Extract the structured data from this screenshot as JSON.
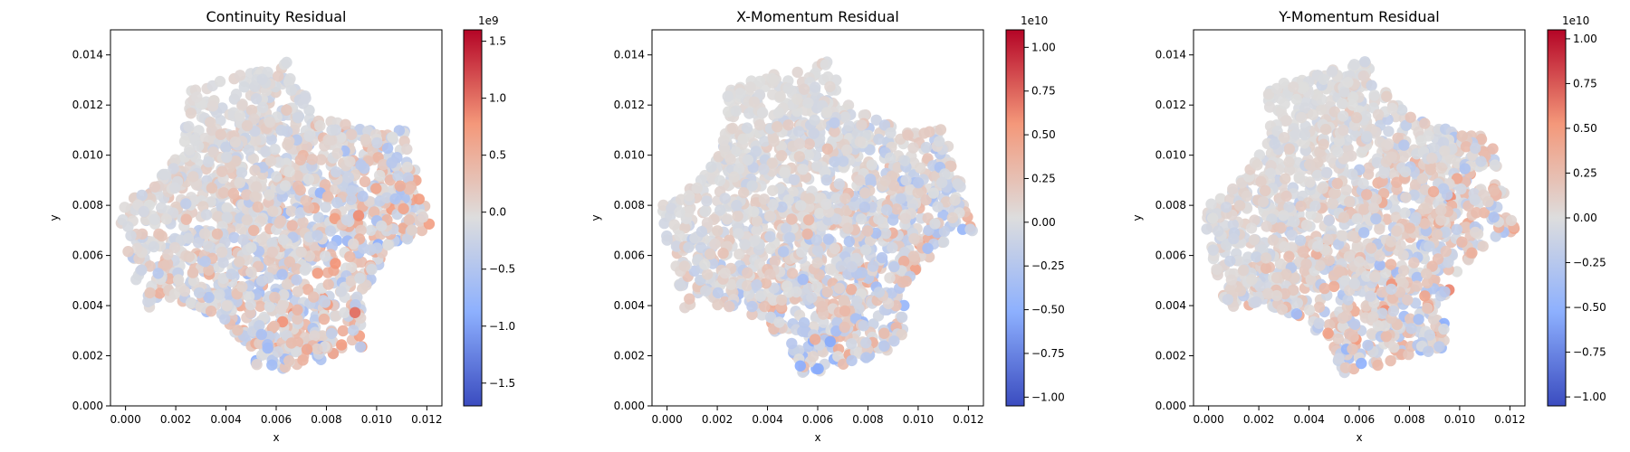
{
  "chart_data": [
    {
      "type": "scatter",
      "title": "Continuity Residual",
      "xlabel": "x",
      "ylabel": "y",
      "xlim": [
        -0.0006,
        0.0126
      ],
      "ylim": [
        0.0,
        0.015
      ],
      "xticks": [
        0.0,
        0.002,
        0.004,
        0.006,
        0.008,
        0.01,
        0.012
      ],
      "xtick_labels": [
        "0.000",
        "0.002",
        "0.004",
        "0.006",
        "0.008",
        "0.010",
        "0.012"
      ],
      "yticks": [
        0.0,
        0.002,
        0.004,
        0.006,
        0.008,
        0.01,
        0.012,
        0.014
      ],
      "ytick_labels": [
        "0.000",
        "0.002",
        "0.004",
        "0.006",
        "0.008",
        "0.010",
        "0.012",
        "0.014"
      ],
      "colormap": "coolwarm",
      "colorbar": {
        "min": -1.7,
        "max": 1.6,
        "exponent_label": "1e9",
        "ticks": [
          -1.5,
          -1.0,
          -0.5,
          0.0,
          0.5,
          1.0,
          1.5
        ],
        "tick_labels": [
          "−1.5",
          "−1.0",
          "−0.5",
          "0.0",
          "0.5",
          "1.0",
          "1.5"
        ]
      },
      "grid": false,
      "residual_pattern": {
        "seed": 11,
        "amplitude": 1.0,
        "low_bias": 0.0,
        "right_bias": 0.2
      }
    },
    {
      "type": "scatter",
      "title": "X-Momentum Residual",
      "xlabel": "x",
      "ylabel": "y",
      "xlim": [
        -0.0006,
        0.0126
      ],
      "ylim": [
        0.0,
        0.015
      ],
      "xticks": [
        0.0,
        0.002,
        0.004,
        0.006,
        0.008,
        0.01,
        0.012
      ],
      "xtick_labels": [
        "0.000",
        "0.002",
        "0.004",
        "0.006",
        "0.008",
        "0.010",
        "0.012"
      ],
      "yticks": [
        0.0,
        0.002,
        0.004,
        0.006,
        0.008,
        0.01,
        0.012,
        0.014
      ],
      "ytick_labels": [
        "0.000",
        "0.002",
        "0.004",
        "0.006",
        "0.008",
        "0.010",
        "0.012",
        "0.014"
      ],
      "colormap": "coolwarm",
      "colorbar": {
        "min": -1.05,
        "max": 1.1,
        "exponent_label": "1e10",
        "ticks": [
          -1.0,
          -0.75,
          -0.5,
          -0.25,
          0.0,
          0.25,
          0.5,
          0.75,
          1.0
        ],
        "tick_labels": [
          "−1.00",
          "−0.75",
          "−0.50",
          "−0.25",
          "0.00",
          "0.25",
          "0.50",
          "0.75",
          "1.00"
        ]
      },
      "grid": false,
      "residual_pattern": {
        "seed": 29,
        "amplitude": 0.8,
        "low_bias": 0.1,
        "right_bias": -0.3
      }
    },
    {
      "type": "scatter",
      "title": "Y-Momentum Residual",
      "xlabel": "x",
      "ylabel": "y",
      "xlim": [
        -0.0006,
        0.0126
      ],
      "ylim": [
        0.0,
        0.015
      ],
      "xticks": [
        0.0,
        0.002,
        0.004,
        0.006,
        0.008,
        0.01,
        0.012
      ],
      "xtick_labels": [
        "0.000",
        "0.002",
        "0.004",
        "0.006",
        "0.008",
        "0.010",
        "0.012"
      ],
      "yticks": [
        0.0,
        0.002,
        0.004,
        0.006,
        0.008,
        0.01,
        0.012,
        0.014
      ],
      "ytick_labels": [
        "0.000",
        "0.002",
        "0.004",
        "0.006",
        "0.008",
        "0.010",
        "0.012",
        "0.014"
      ],
      "colormap": "coolwarm",
      "colorbar": {
        "min": -1.05,
        "max": 1.05,
        "exponent_label": "1e10",
        "ticks": [
          -1.0,
          -0.75,
          -0.5,
          -0.25,
          0.0,
          0.25,
          0.5,
          0.75,
          1.0
        ],
        "tick_labels": [
          "−1.00",
          "−0.75",
          "−0.50",
          "−0.25",
          "0.00",
          "0.25",
          "0.50",
          "0.75",
          "1.00"
        ]
      },
      "grid": false,
      "residual_pattern": {
        "seed": 47,
        "amplitude": 0.85,
        "low_bias": 0.25,
        "right_bias": 0.0
      }
    }
  ]
}
